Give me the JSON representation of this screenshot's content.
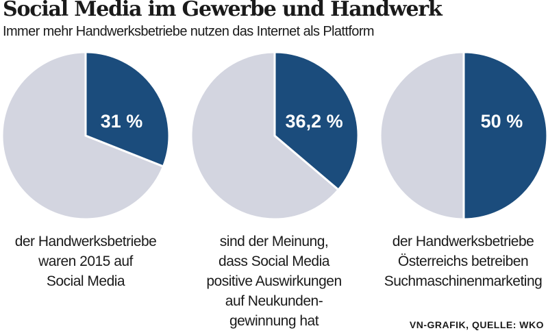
{
  "title": "Social Media im Gewerbe und Handwerk",
  "subtitle": "Immer mehr Handwerksbetriebe nutzen das Internet als Plattform",
  "source": "VN-GRAFIK, QUELLE: WKO",
  "colors": {
    "highlight": "#1b4c7c",
    "rest": "#d3d5e0"
  },
  "chart_data": [
    {
      "type": "pie",
      "values": [
        31,
        69
      ],
      "label": "31 %",
      "caption": "der Handwerksbetriebe\nwaren 2015 auf\nSocial Media"
    },
    {
      "type": "pie",
      "values": [
        36.2,
        63.8
      ],
      "label": "36,2 %",
      "caption": "sind der Meinung,\ndass Social Media\npositive Auswirkungen\nauf Neukunden-\ngewinnung hat"
    },
    {
      "type": "pie",
      "values": [
        50,
        50
      ],
      "label": "50 %",
      "caption": "der Handwerksbetriebe\nÖsterreichs betreiben\nSuchmaschinenmarketing"
    }
  ]
}
